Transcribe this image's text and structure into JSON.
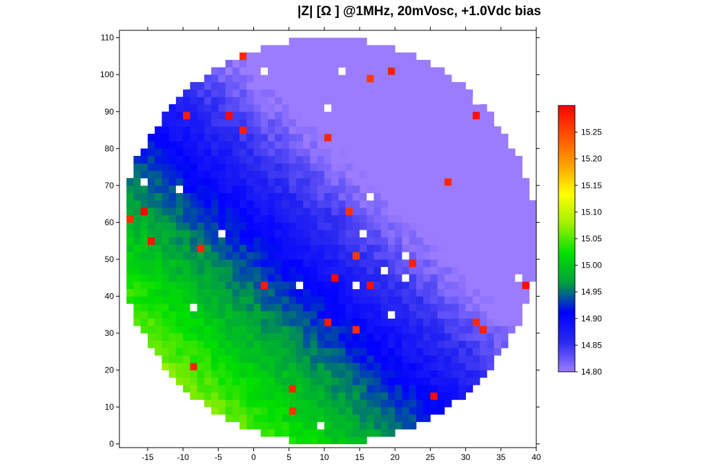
{
  "chart_data": {
    "type": "heatmap",
    "title": "|Z| [Ω ] @1MHz, 20mVosc, +1.0Vdc bias",
    "xlabel": "",
    "ylabel": "",
    "xlim": [
      -19,
      40
    ],
    "ylim": [
      -1,
      112
    ],
    "x_ticks": [
      -15,
      -10,
      -5,
      0,
      5,
      10,
      15,
      20,
      25,
      30,
      35,
      40
    ],
    "y_ticks": [
      0,
      10,
      20,
      30,
      40,
      50,
      60,
      70,
      80,
      90,
      100,
      110
    ],
    "grid": false,
    "cell_size": {
      "x": 1,
      "y": 2
    },
    "wafer_region": {
      "center_x": 10.5,
      "center_y": 55,
      "radius_x": 29.5,
      "radius_y": 55
    },
    "value_field": {
      "base": 14.86,
      "gradient_per_unit_x": -0.0048,
      "gradient_per_unit_y": -0.0026,
      "center_x": 10.5,
      "center_y": 55,
      "noise": 0.012,
      "outlier_high_value": 15.3,
      "outlier_count": 30,
      "missing_count": 18
    },
    "colorbar": {
      "min": 14.8,
      "max": 15.3,
      "ticks": [
        14.8,
        14.85,
        14.9,
        14.95,
        15.0,
        15.05,
        15.1,
        15.15,
        15.2,
        15.25
      ],
      "tick_labels": [
        "14.80",
        "14.85",
        "14.90",
        "14.95",
        "15.00",
        "15.05",
        "15.10",
        "15.15",
        "15.20",
        "15.25"
      ],
      "colors": [
        "#9b7cff",
        "#2a2af0",
        "#0000ff",
        "#00a040",
        "#00e000",
        "#a0f000",
        "#ffff00",
        "#ffa000",
        "#ff5000",
        "#ff0000"
      ]
    }
  }
}
